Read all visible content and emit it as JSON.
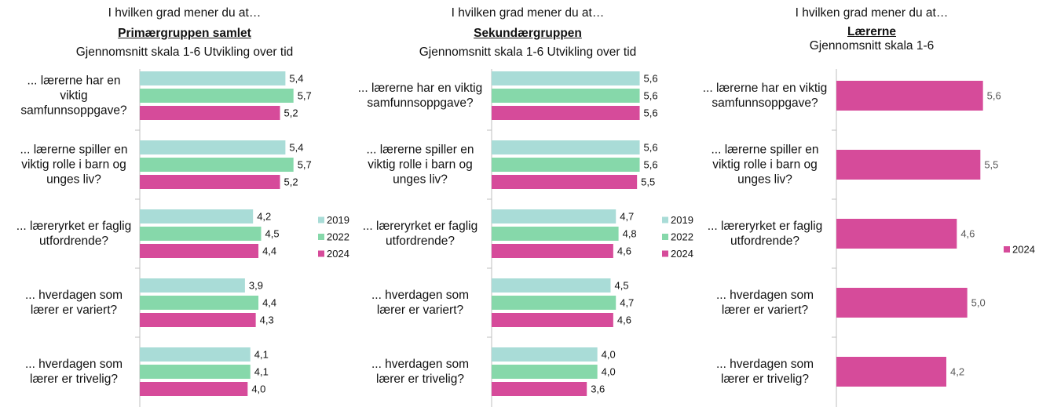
{
  "chart_data": [
    {
      "type": "bar",
      "orientation": "horizontal",
      "title": "I hvilken grad mener du at…",
      "group": "Primærgruppen samlet",
      "note": "Gjennomsnitt skala 1-6 Utvikling over tid",
      "categories": [
        "... lærerne har en viktig samfunnsoppgave?",
        "... lærerne spiller en viktig rolle i barn og unges liv?",
        "... læreryrket er faglig utfordrende?",
        "... hverdagen som lærer er variert?",
        "... hverdagen som lærer er trivelig?"
      ],
      "xlim": [
        0,
        6
      ],
      "series": [
        {
          "name": "2019",
          "color": "#a9dcd7",
          "values": [
            5.4,
            5.4,
            4.2,
            3.9,
            4.1
          ],
          "value_labels": [
            "5,4",
            "5,4",
            "4,2",
            "3,9",
            "4,1"
          ]
        },
        {
          "name": "2022",
          "color": "#86d8aa",
          "values": [
            5.7,
            5.7,
            4.5,
            4.4,
            4.1
          ],
          "value_labels": [
            "5,7",
            "5,7",
            "4,5",
            "4,4",
            "4,1"
          ]
        },
        {
          "name": "2024",
          "color": "#d64b9a",
          "values": [
            5.2,
            5.2,
            4.4,
            4.3,
            4.0
          ],
          "value_labels": [
            "5,2",
            "5,2",
            "4,4",
            "4,3",
            "4,0"
          ]
        }
      ]
    },
    {
      "type": "bar",
      "orientation": "horizontal",
      "title": "I hvilken grad mener du at…",
      "group": "Sekundærgruppen",
      "note": "Gjennomsnitt skala 1-6 Utvikling over tid",
      "categories": [
        "... lærerne har en viktig samfunnsoppgave?",
        "... lærerne spiller en viktig rolle i barn og unges liv?",
        "... læreryrket er faglig utfordrende?",
        "... hverdagen som lærer er variert?",
        "... hverdagen som lærer er trivelig?"
      ],
      "xlim": [
        0,
        6
      ],
      "series": [
        {
          "name": "2019",
          "color": "#a9dcd7",
          "values": [
            5.6,
            5.6,
            4.7,
            4.5,
            4.0
          ],
          "value_labels": [
            "5,6",
            "5,6",
            "4,7",
            "4,5",
            "4,0"
          ]
        },
        {
          "name": "2022",
          "color": "#86d8aa",
          "values": [
            5.6,
            5.6,
            4.8,
            4.7,
            4.0
          ],
          "value_labels": [
            "5,6",
            "5,6",
            "4,8",
            "4,7",
            "4,0"
          ]
        },
        {
          "name": "2024",
          "color": "#d64b9a",
          "values": [
            5.6,
            5.5,
            4.6,
            4.6,
            3.6
          ],
          "value_labels": [
            "5,6",
            "5,5",
            "4,6",
            "4,6",
            "3,6"
          ]
        }
      ]
    },
    {
      "type": "bar",
      "orientation": "horizontal",
      "title": "I hvilken grad mener du at…",
      "group": "Lærerne",
      "note": "Gjennomsnitt skala 1-6",
      "categories": [
        "... lærerne har en viktig samfunnsoppgave?",
        "... lærerne spiller en viktig rolle i barn og unges liv?",
        "... læreryrket er faglig utfordrende?",
        "... hverdagen som lærer er variert?",
        "... hverdagen som lærer er trivelig?"
      ],
      "xlim": [
        0,
        6
      ],
      "series": [
        {
          "name": "2024",
          "color": "#d64b9a",
          "values": [
            5.6,
            5.5,
            4.6,
            5.0,
            4.2
          ],
          "value_labels": [
            "5,6",
            "5,5",
            "4,6",
            "5,0",
            "4,2"
          ]
        }
      ]
    }
  ]
}
